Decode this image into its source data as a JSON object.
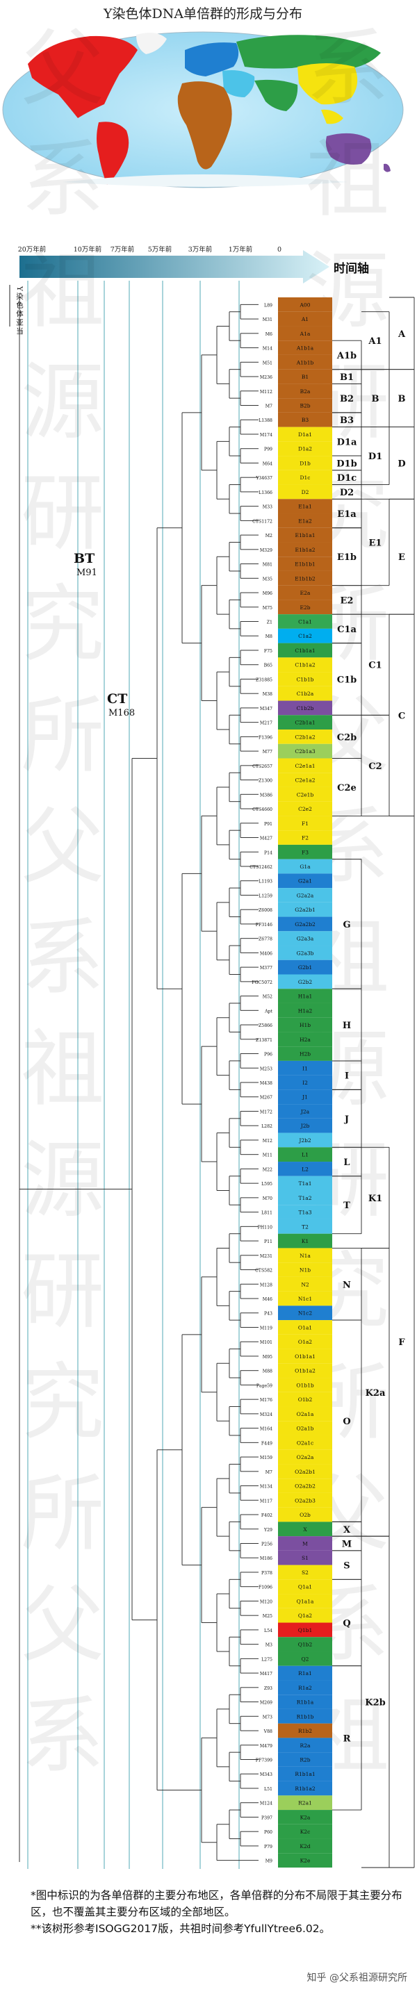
{
  "title": "Y染色体DNA单倍群的形成与分布",
  "side_label": "Y染色体亚当",
  "timeline": {
    "label": "时间轴",
    "ticks": [
      "20万年前",
      "10万年前",
      "7万年前",
      "5万年前",
      "3万年前",
      "1万年前",
      "0"
    ]
  },
  "nodes": [
    {
      "label": "BT",
      "marker": "M91"
    },
    {
      "label": "CT",
      "marker": "M168"
    }
  ],
  "legend_background": "父系祖源研究所",
  "columns": {
    "sub": [
      "A1b",
      "B1",
      "B2",
      "B3",
      "D1a",
      "D1b",
      "D1c",
      "D2",
      "E1a",
      "E1b",
      "E2",
      "C1a",
      "C1b",
      "C2b",
      "C2e",
      "G",
      "H",
      "I",
      "J",
      "L",
      "T",
      "N",
      "O",
      "X",
      "M",
      "S",
      "Q",
      "R"
    ],
    "mid": [
      "A1",
      "B",
      "D1",
      "E1",
      "C1",
      "C2",
      "K1",
      "K2a",
      "K2b"
    ],
    "top": [
      "A",
      "B",
      "D",
      "E",
      "C",
      "F"
    ]
  },
  "rows": [
    {
      "m": "L89",
      "h": "A00",
      "c": "#b8641a"
    },
    {
      "m": "M31",
      "h": "A1",
      "c": "#b8641a"
    },
    {
      "m": "M6",
      "h": "A1a",
      "c": "#b8641a"
    },
    {
      "m": "M14",
      "h": "A1b1a",
      "c": "#b8641a"
    },
    {
      "m": "M51",
      "h": "A1b1b",
      "c": "#b8641a"
    },
    {
      "m": "M236",
      "h": "B1",
      "c": "#b8641a"
    },
    {
      "m": "M112",
      "h": "B2a",
      "c": "#b8641a"
    },
    {
      "m": "M7",
      "h": "B2b",
      "c": "#b8641a"
    },
    {
      "m": "L1388",
      "h": "B3",
      "c": "#b8641a"
    },
    {
      "m": "M174",
      "h": "D1a1",
      "c": "#f5e30f"
    },
    {
      "m": "P99",
      "h": "D1a2",
      "c": "#f5e30f"
    },
    {
      "m": "M64",
      "h": "D1b",
      "c": "#f5e30f"
    },
    {
      "m": "Y34637",
      "h": "D1c",
      "c": "#f5e30f"
    },
    {
      "m": "L1366",
      "h": "D2",
      "c": "#f5e30f"
    },
    {
      "m": "M33",
      "h": "E1a1",
      "c": "#b8641a"
    },
    {
      "m": "CTS1172",
      "h": "E1a2",
      "c": "#b8641a"
    },
    {
      "m": "M2",
      "h": "E1b1a1",
      "c": "#b8641a"
    },
    {
      "m": "M329",
      "h": "E1b1a2",
      "c": "#b8641a"
    },
    {
      "m": "M81",
      "h": "E1b1b1",
      "c": "#b8641a"
    },
    {
      "m": "M35",
      "h": "E1b1b2",
      "c": "#b8641a"
    },
    {
      "m": "M96",
      "h": "E2a",
      "c": "#b8641a"
    },
    {
      "m": "M75",
      "h": "E2b",
      "c": "#b8641a"
    },
    {
      "m": "Z1",
      "h": "C1a1",
      "c": "#34a853"
    },
    {
      "m": "M8",
      "h": "C1a2",
      "c": "#00aeef"
    },
    {
      "m": "F75",
      "h": "C1b1a1",
      "c": "#2d9e47"
    },
    {
      "m": "B65",
      "h": "C1b1a2",
      "c": "#f5e30f"
    },
    {
      "m": "Z31885",
      "h": "C1b1b",
      "c": "#f5e30f"
    },
    {
      "m": "M38",
      "h": "C1b2a",
      "c": "#f5e30f"
    },
    {
      "m": "M347",
      "h": "C1b2b",
      "c": "#7b4fa0"
    },
    {
      "m": "M217",
      "h": "C2b1a1",
      "c": "#2d9e47"
    },
    {
      "m": "F1396",
      "h": "C2b1a2",
      "c": "#f5e30f"
    },
    {
      "m": "M77",
      "h": "C2b1a3",
      "c": "#9bcf5b"
    },
    {
      "m": "CTS2657",
      "h": "C2e1a1",
      "c": "#f5e30f"
    },
    {
      "m": "Z1300",
      "h": "C2e1a2",
      "c": "#f5e30f"
    },
    {
      "m": "M386",
      "h": "C2e1b",
      "c": "#f5e30f"
    },
    {
      "m": "CTS4660",
      "h": "C2e2",
      "c": "#f5e30f"
    },
    {
      "m": "P91",
      "h": "F1",
      "c": "#f5e30f"
    },
    {
      "m": "M427",
      "h": "F2",
      "c": "#f5e30f"
    },
    {
      "m": "P14",
      "h": "F3",
      "c": "#2d9e47"
    },
    {
      "m": "CTS12462",
      "h": "G1a",
      "c": "#4cc3e8"
    },
    {
      "m": "L1193",
      "h": "G2a1",
      "c": "#1f7fd0"
    },
    {
      "m": "L1259",
      "h": "G2a2a",
      "c": "#4cc3e8"
    },
    {
      "m": "Z6008",
      "h": "G2a2b1",
      "c": "#4cc3e8"
    },
    {
      "m": "PF3146",
      "h": "G2a2b2",
      "c": "#1f7fd0"
    },
    {
      "m": "Z6778",
      "h": "G2a3a",
      "c": "#4cc3e8"
    },
    {
      "m": "M406",
      "h": "G2a3b",
      "c": "#4cc3e8"
    },
    {
      "m": "M377",
      "h": "G2b1",
      "c": "#1f7fd0"
    },
    {
      "m": "FGC5072",
      "h": "G2b2",
      "c": "#4cc3e8"
    },
    {
      "m": "M52",
      "h": "H1a1",
      "c": "#2d9e47"
    },
    {
      "m": "Apt",
      "h": "H1a2",
      "c": "#2d9e47"
    },
    {
      "m": "Z5866",
      "h": "H1b",
      "c": "#2d9e47"
    },
    {
      "m": "Z13871",
      "h": "H2a",
      "c": "#2d9e47"
    },
    {
      "m": "P96",
      "h": "H2b",
      "c": "#2d9e47"
    },
    {
      "m": "M253",
      "h": "I1",
      "c": "#1f7fd0"
    },
    {
      "m": "M438",
      "h": "I2",
      "c": "#1f7fd0"
    },
    {
      "m": "M267",
      "h": "J1",
      "c": "#1f7fd0"
    },
    {
      "m": "M172",
      "h": "J2a",
      "c": "#1f7fd0"
    },
    {
      "m": "L282",
      "h": "J2b",
      "c": "#1f7fd0"
    },
    {
      "m": "M12",
      "h": "J2b2",
      "c": "#4cc3e8"
    },
    {
      "m": "M11",
      "h": "L1",
      "c": "#2d9e47"
    },
    {
      "m": "M22",
      "h": "L2",
      "c": "#1f7fd0"
    },
    {
      "m": "L595",
      "h": "T1a1",
      "c": "#4cc3e8"
    },
    {
      "m": "M70",
      "h": "T1a2",
      "c": "#4cc3e8"
    },
    {
      "m": "L811",
      "h": "T1a3",
      "c": "#4cc3e8"
    },
    {
      "m": "PH110",
      "h": "T2",
      "c": "#4cc3e8"
    },
    {
      "m": "P11",
      "h": "K1",
      "c": "#2d9e47"
    },
    {
      "m": "M231",
      "h": "N1a",
      "c": "#f5e30f"
    },
    {
      "m": "CTS582",
      "h": "N1b",
      "c": "#f5e30f"
    },
    {
      "m": "M128",
      "h": "N2",
      "c": "#f5e30f"
    },
    {
      "m": "M46",
      "h": "N1c1",
      "c": "#f5e30f"
    },
    {
      "m": "P43",
      "h": "N1c2",
      "c": "#1f7fd0"
    },
    {
      "m": "M119",
      "h": "O1a1",
      "c": "#f5e30f"
    },
    {
      "m": "M101",
      "h": "O1a2",
      "c": "#f5e30f"
    },
    {
      "m": "M95",
      "h": "O1b1a1",
      "c": "#f5e30f"
    },
    {
      "m": "M88",
      "h": "O1b1a2",
      "c": "#f5e30f"
    },
    {
      "m": "Page59",
      "h": "O1b1b",
      "c": "#f5e30f"
    },
    {
      "m": "M176",
      "h": "O1b2",
      "c": "#f5e30f"
    },
    {
      "m": "M324",
      "h": "O2a1a",
      "c": "#f5e30f"
    },
    {
      "m": "M164",
      "h": "O2a1b",
      "c": "#f5e30f"
    },
    {
      "m": "F449",
      "h": "O2a1c",
      "c": "#f5e30f"
    },
    {
      "m": "M159",
      "h": "O2a2a",
      "c": "#f5e30f"
    },
    {
      "m": "M7",
      "h": "O2a2b1",
      "c": "#f5e30f"
    },
    {
      "m": "M134",
      "h": "O2a2b2",
      "c": "#f5e30f"
    },
    {
      "m": "M117",
      "h": "O2a2b3",
      "c": "#f5e30f"
    },
    {
      "m": "F402",
      "h": "O2b",
      "c": "#f5e30f"
    },
    {
      "m": "Y29",
      "h": "X",
      "c": "#2d9e47"
    },
    {
      "m": "P256",
      "h": "M",
      "c": "#7b4fa0"
    },
    {
      "m": "M186",
      "h": "S1",
      "c": "#7b4fa0"
    },
    {
      "m": "P378",
      "h": "S2",
      "c": "#f5e30f"
    },
    {
      "m": "F1096",
      "h": "Q1a1",
      "c": "#f5e30f"
    },
    {
      "m": "M120",
      "h": "Q1a1a",
      "c": "#f5e30f"
    },
    {
      "m": "M25",
      "h": "Q1a2",
      "c": "#f5e30f"
    },
    {
      "m": "L54",
      "h": "Q1b1",
      "c": "#e51e1e"
    },
    {
      "m": "M3",
      "h": "Q1b2",
      "c": "#2d9e47"
    },
    {
      "m": "L275",
      "h": "Q2",
      "c": "#2d9e47"
    },
    {
      "m": "M417",
      "h": "R1a1",
      "c": "#1f7fd0"
    },
    {
      "m": "Z93",
      "h": "R1a2",
      "c": "#1f7fd0"
    },
    {
      "m": "M269",
      "h": "R1b1a",
      "c": "#1f7fd0"
    },
    {
      "m": "M73",
      "h": "R1b1b",
      "c": "#1f7fd0"
    },
    {
      "m": "V88",
      "h": "R1b2",
      "c": "#b8641a"
    },
    {
      "m": "M479",
      "h": "R2a",
      "c": "#1f7fd0"
    },
    {
      "m": "PF7399",
      "h": "R2b",
      "c": "#1f7fd0"
    },
    {
      "m": "M343",
      "h": "R1b1a1",
      "c": "#1f7fd0"
    },
    {
      "m": "L51",
      "h": "R1b1a2",
      "c": "#1f7fd0"
    },
    {
      "m": "M124",
      "h": "R2a1",
      "c": "#9bcf5b"
    },
    {
      "m": "P397",
      "h": "K2a",
      "c": "#2d9e47"
    },
    {
      "m": "P60",
      "h": "K2c",
      "c": "#2d9e47"
    },
    {
      "m": "P79",
      "h": "K2d",
      "c": "#2d9e47"
    },
    {
      "m": "M9",
      "h": "K2e",
      "c": "#2d9e47"
    }
  ],
  "footnotes": [
    "*图中标识的为各单倍群的主要分布地区，各单倍群的分布不局限于其主要分布区，也不覆盖其主要分布区域的全部地区。",
    "**该树形参考ISOGG2017版，共祖时间参考YfullYtree6.02。"
  ],
  "watermark": "知乎 @父系祖源研究所",
  "colors": {
    "africa": "#b8641a",
    "east_asia": "#f5e30f",
    "europe": "#1f7fd0",
    "west_asia": "#4cc3e8",
    "south_asia": "#2d9e47",
    "americas": "#e51e1e",
    "oceania": "#7b4fa0",
    "ocean": "#aee4f7"
  }
}
